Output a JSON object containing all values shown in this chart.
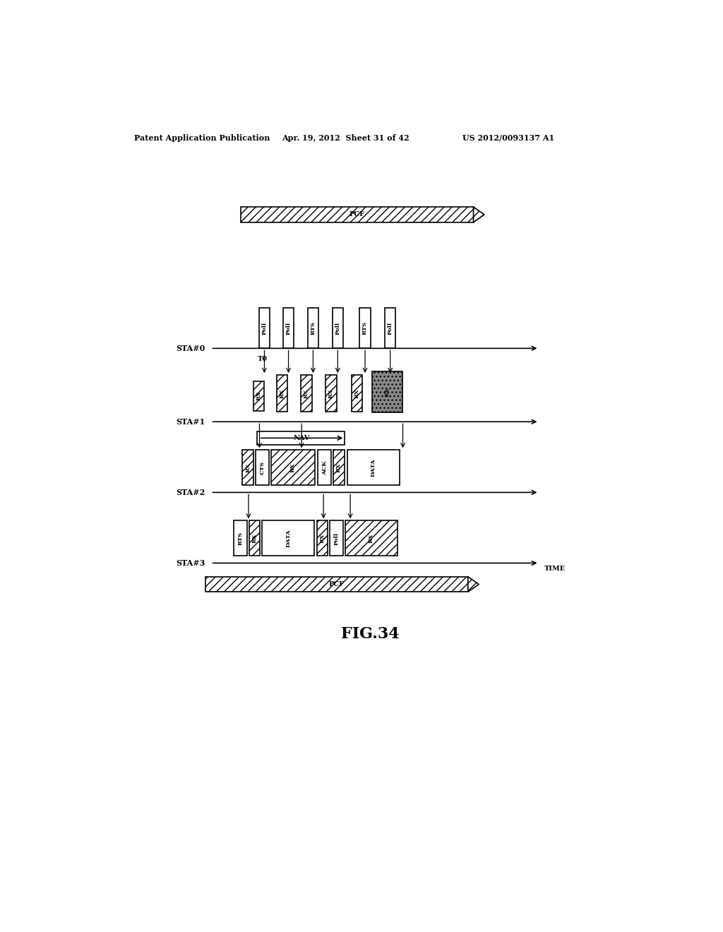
{
  "background_color": "#ffffff",
  "fig_width": 10.24,
  "fig_height": 13.2,
  "dpi": 100,
  "header_left": "Patent Application Publication",
  "header_mid": "Apr. 19, 2012  Sheet 31 of 42",
  "header_right": "US 2012/0093137 A1",
  "caption": "FIG.34"
}
